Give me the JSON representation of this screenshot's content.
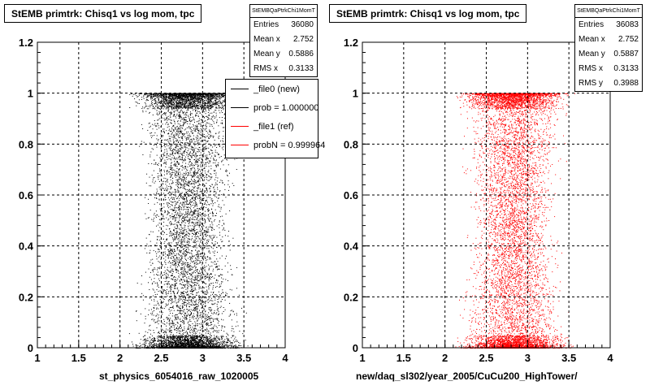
{
  "colors": {
    "left_points": "#000000",
    "right_points": "#ff0000",
    "frame": "#000000",
    "grid": "#000000"
  },
  "left": {
    "title": "StEMB primtrk: Chisq1 vs log mom, tpc",
    "stats": {
      "name": "StEMBQaPtrkChi1MomT",
      "rows": [
        {
          "label": "Entries",
          "value": "36080"
        },
        {
          "label": "Mean x",
          "value": "2.752"
        },
        {
          "label": "Mean y",
          "value": "0.5886"
        },
        {
          "label": "RMS x",
          "value": "0.3133"
        }
      ]
    },
    "legend": [
      {
        "label": "_file0 (new)",
        "color": "#000000"
      },
      {
        "label": "prob = 1.000000",
        "color": "#000000"
      },
      {
        "label": "_file1 (ref)",
        "color": "#ff0000"
      },
      {
        "label": "probN = 0.999964",
        "color": "#ff0000"
      }
    ],
    "xlabel": "st_physics_6054016_raw_1020005"
  },
  "right": {
    "title": "StEMB primtrk: Chisq1 vs log mom, tpc",
    "stats": {
      "name": "StEMBQaPtrkChi1MomT",
      "rows": [
        {
          "label": "Entries",
          "value": "36083"
        },
        {
          "label": "Mean x",
          "value": "2.752"
        },
        {
          "label": "Mean y",
          "value": "0.5887"
        },
        {
          "label": "RMS x",
          "value": "0.3133"
        },
        {
          "label": "RMS y",
          "value": "0.3988"
        }
      ]
    },
    "xlabel": "new/daq_sl302/year_2005/CuCu200_HighTower/"
  },
  "chart_data": [
    {
      "type": "scatter",
      "title": "StEMB primtrk: Chisq1 vs log mom, tpc",
      "xlabel": "st_physics_6054016_raw_1020005",
      "ylabel": "",
      "xlim": [
        1,
        4
      ],
      "ylim": [
        0,
        1.2
      ],
      "x_ticks": [
        "1",
        "1.5",
        "2",
        "2.5",
        "3",
        "3.5",
        "4"
      ],
      "y_ticks": [
        "0",
        "0.2",
        "0.4",
        "0.6",
        "0.8",
        "1",
        "1.2"
      ],
      "grid": true,
      "point_color": "#000000",
      "entries": 36080,
      "mean_x": 2.752,
      "mean_y": 0.5886,
      "rms_x": 0.3133,
      "x_range_of_points": [
        2.0,
        3.55
      ],
      "dense_bands_y": [
        0.0,
        1.0
      ]
    },
    {
      "type": "scatter",
      "title": "StEMB primtrk: Chisq1 vs log mom, tpc",
      "xlabel": "new/daq_sl302/year_2005/CuCu200_HighTower/",
      "ylabel": "",
      "xlim": [
        1,
        4
      ],
      "ylim": [
        0,
        1.2
      ],
      "x_ticks": [
        "1",
        "1.5",
        "2",
        "2.5",
        "3",
        "3.5",
        "4"
      ],
      "y_ticks": [
        "0",
        "0.2",
        "0.4",
        "0.6",
        "0.8",
        "1",
        "1.2"
      ],
      "grid": true,
      "point_color": "#ff0000",
      "entries": 36083,
      "mean_x": 2.752,
      "mean_y": 0.5887,
      "rms_x": 0.3133,
      "rms_y": 0.3988,
      "x_range_of_points": [
        2.0,
        3.55
      ],
      "dense_bands_y": [
        0.0,
        1.0
      ]
    }
  ]
}
